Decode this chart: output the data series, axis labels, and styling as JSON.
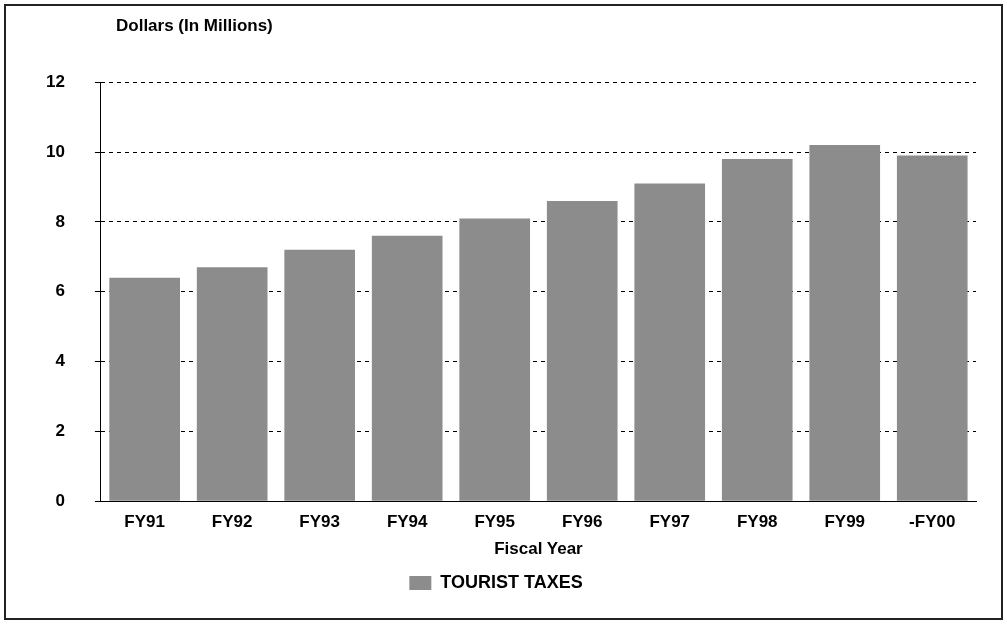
{
  "chart_data": {
    "type": "bar",
    "ylabel": "Dollars (In Millions)",
    "xlabel": "Fiscal Year",
    "categories": [
      "FY91",
      "FY92",
      "FY93",
      "FY94",
      "FY95",
      "FY96",
      "FY97",
      "FY98",
      "FY99",
      "-FY00"
    ],
    "series": [
      {
        "name": "TOURIST TAXES",
        "color": "#8c8c8c",
        "values": [
          6.4,
          6.7,
          7.2,
          7.6,
          8.1,
          8.6,
          9.1,
          9.8,
          10.2,
          9.9
        ]
      }
    ],
    "ylim": [
      0,
      12
    ],
    "yticks": [
      0,
      2,
      4,
      6,
      8,
      10,
      12
    ],
    "grid": "y",
    "legend": "bottom"
  }
}
